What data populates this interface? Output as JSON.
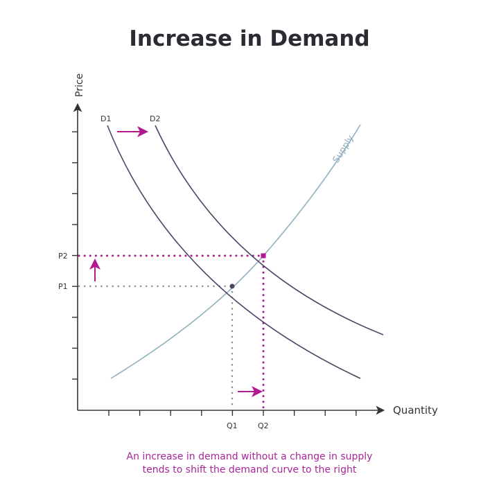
{
  "title": "Increase in Demand",
  "caption": [
    "An increase in demand without a change in supply",
    "tends to shift the demand curve to the right"
  ],
  "colors": {
    "demand": "#4a4565",
    "supply": "#8fb0bc",
    "highlight": "#b0198f",
    "axis": "#333333",
    "original_guides": "#8a8f96"
  },
  "chart_data": {
    "type": "line",
    "title": "Increase in Demand",
    "xlabel": "Quantity",
    "ylabel": "Price",
    "x_tick_labels": [
      "Q1",
      "Q2"
    ],
    "y_tick_labels": [
      "P1",
      "P2"
    ],
    "series": [
      {
        "name": "D1",
        "shape": "downward-sloping"
      },
      {
        "name": "D2",
        "shape": "downward-sloping, shifted right"
      },
      {
        "name": "Supply",
        "shape": "upward-sloping"
      }
    ],
    "equilibria": [
      {
        "price": "P1",
        "quantity": "Q1",
        "curves": [
          "D1",
          "Supply"
        ]
      },
      {
        "price": "P2",
        "quantity": "Q2",
        "curves": [
          "D2",
          "Supply"
        ]
      }
    ],
    "annotations": [
      "shift right arrow between D1 and D2",
      "up arrow from P1 to P2",
      "right arrow from Q1 to Q2"
    ],
    "grid": false
  }
}
